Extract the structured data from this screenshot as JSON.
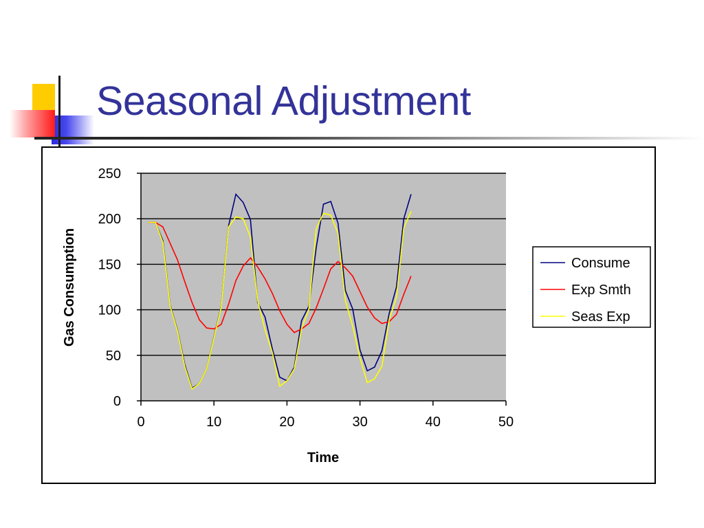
{
  "slide": {
    "title": "Seasonal Adjustment"
  },
  "chart_data": {
    "type": "line",
    "xlabel": "Time",
    "ylabel": "Gas Consumption",
    "xlim": [
      0,
      50
    ],
    "ylim": [
      0,
      250
    ],
    "x_ticks": [
      0,
      10,
      20,
      30,
      40,
      50
    ],
    "y_ticks": [
      0,
      50,
      100,
      150,
      200,
      250
    ],
    "grid": "horizontal",
    "legend_position": "right",
    "plot_background": "#c0c0c0",
    "x": [
      1,
      2,
      3,
      4,
      5,
      6,
      7,
      8,
      9,
      10,
      11,
      12,
      13,
      14,
      15,
      16,
      17,
      18,
      19,
      20,
      21,
      22,
      23,
      24,
      25,
      26,
      27,
      28,
      29,
      30,
      31,
      32,
      33,
      34,
      35,
      36,
      37
    ],
    "series": [
      {
        "name": "Consume",
        "color": "#000080",
        "values": [
          196,
          196,
          176,
          105,
          78,
          40,
          14,
          19,
          35,
          70,
          104,
          192,
          227,
          218,
          199,
          108,
          92,
          57,
          26,
          22,
          37,
          88,
          104,
          168,
          216,
          219,
          195,
          121,
          101,
          56,
          33,
          37,
          55,
          96,
          125,
          200,
          227
        ]
      },
      {
        "name": "Exp Smth",
        "color": "#ff0000",
        "values": [
          196,
          196,
          191,
          173,
          155,
          131,
          108,
          89,
          80,
          79,
          84,
          106,
          132,
          148,
          157,
          147,
          134,
          118,
          99,
          84,
          75,
          79,
          85,
          102,
          123,
          145,
          153,
          146,
          137,
          120,
          103,
          91,
          85,
          87,
          95,
          117,
          137
        ]
      },
      {
        "name": "Seas Exp",
        "color": "#ffff00",
        "values": [
          196,
          196,
          174,
          104,
          77,
          38,
          13,
          19,
          35,
          69,
          103,
          191,
          202,
          200,
          180,
          110,
          78,
          53,
          16,
          22,
          35,
          79,
          101,
          189,
          206,
          204,
          184,
          110,
          82,
          47,
          20,
          24,
          38,
          89,
          114,
          190,
          208
        ]
      }
    ]
  }
}
